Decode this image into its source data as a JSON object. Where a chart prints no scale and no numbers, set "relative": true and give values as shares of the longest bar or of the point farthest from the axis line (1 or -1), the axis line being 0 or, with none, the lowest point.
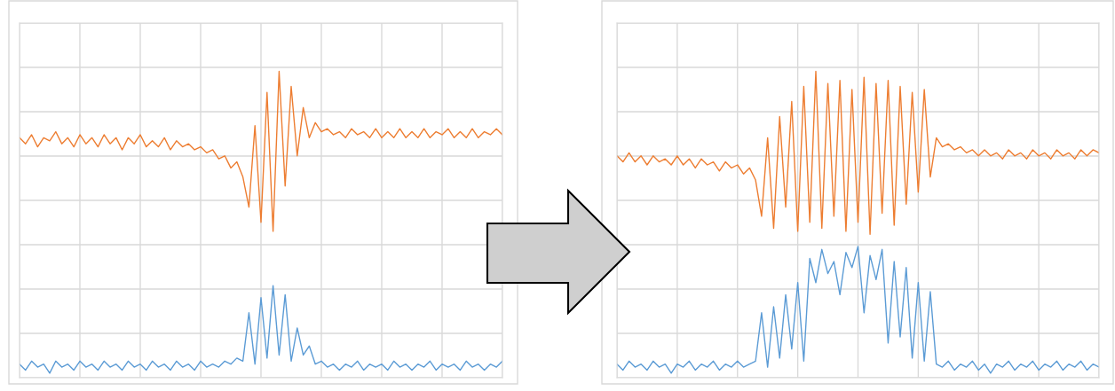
{
  "chart_data": [
    {
      "type": "line",
      "relative": true,
      "grid": true,
      "tick_labels": false,
      "categories": [
        null,
        null,
        null,
        null,
        null,
        null,
        null,
        null,
        null,
        null,
        null,
        null,
        null,
        null,
        null,
        null,
        null,
        null,
        null,
        null,
        null,
        null,
        null,
        null,
        null,
        null,
        null,
        null,
        null,
        null,
        null,
        null,
        null,
        null,
        null,
        null,
        null,
        null,
        null,
        null,
        null,
        null,
        null,
        null,
        null,
        null,
        null,
        null,
        null,
        null,
        null,
        null,
        null,
        null,
        null,
        null,
        null,
        null,
        null,
        null,
        null,
        null,
        null,
        null,
        null,
        null,
        null,
        null,
        null,
        null,
        null,
        null,
        null,
        null,
        null,
        null,
        null,
        null,
        null,
        null,
        null
      ],
      "series": [
        {
          "color": "#ed7d31",
          "values": [
            0.78,
            0.76,
            0.79,
            0.75,
            0.78,
            0.77,
            0.8,
            0.76,
            0.78,
            0.75,
            0.79,
            0.76,
            0.78,
            0.75,
            0.79,
            0.76,
            0.78,
            0.74,
            0.78,
            0.76,
            0.79,
            0.75,
            0.77,
            0.75,
            0.78,
            0.74,
            0.77,
            0.75,
            0.76,
            0.74,
            0.75,
            0.73,
            0.74,
            0.71,
            0.72,
            0.68,
            0.7,
            0.65,
            0.55,
            0.82,
            0.5,
            0.93,
            0.47,
            1.0,
            0.62,
            0.95,
            0.72,
            0.88,
            0.78,
            0.83,
            0.8,
            0.81,
            0.79,
            0.8,
            0.78,
            0.81,
            0.79,
            0.8,
            0.78,
            0.81,
            0.78,
            0.8,
            0.78,
            0.81,
            0.78,
            0.8,
            0.78,
            0.81,
            0.78,
            0.8,
            0.79,
            0.81,
            0.78,
            0.8,
            0.78,
            0.81,
            0.78,
            0.8,
            0.79,
            0.81,
            0.79
          ]
        },
        {
          "color": "#5b9bd5",
          "values": [
            0.03,
            0.01,
            0.04,
            0.02,
            0.03,
            0.0,
            0.04,
            0.02,
            0.03,
            0.01,
            0.04,
            0.02,
            0.03,
            0.01,
            0.04,
            0.02,
            0.03,
            0.01,
            0.04,
            0.02,
            0.03,
            0.01,
            0.04,
            0.02,
            0.03,
            0.01,
            0.04,
            0.02,
            0.03,
            0.01,
            0.04,
            0.02,
            0.03,
            0.02,
            0.04,
            0.03,
            0.05,
            0.04,
            0.2,
            0.03,
            0.25,
            0.05,
            0.29,
            0.06,
            0.26,
            0.04,
            0.15,
            0.06,
            0.09,
            0.03,
            0.04,
            0.02,
            0.03,
            0.01,
            0.03,
            0.02,
            0.04,
            0.01,
            0.03,
            0.02,
            0.03,
            0.01,
            0.04,
            0.02,
            0.03,
            0.01,
            0.03,
            0.02,
            0.04,
            0.01,
            0.03,
            0.02,
            0.03,
            0.01,
            0.04,
            0.02,
            0.03,
            0.01,
            0.03,
            0.02,
            0.04
          ]
        }
      ]
    },
    {
      "type": "line",
      "relative": true,
      "grid": true,
      "tick_labels": false,
      "categories": [
        null,
        null,
        null,
        null,
        null,
        null,
        null,
        null,
        null,
        null,
        null,
        null,
        null,
        null,
        null,
        null,
        null,
        null,
        null,
        null,
        null,
        null,
        null,
        null,
        null,
        null,
        null,
        null,
        null,
        null,
        null,
        null,
        null,
        null,
        null,
        null,
        null,
        null,
        null,
        null,
        null,
        null,
        null,
        null,
        null,
        null,
        null,
        null,
        null,
        null,
        null,
        null,
        null,
        null,
        null,
        null,
        null,
        null,
        null,
        null,
        null,
        null,
        null,
        null,
        null,
        null,
        null,
        null,
        null,
        null,
        null,
        null,
        null,
        null,
        null,
        null,
        null,
        null,
        null,
        null,
        null
      ],
      "series": [
        {
          "color": "#ed7d31",
          "values": [
            0.72,
            0.7,
            0.73,
            0.7,
            0.72,
            0.69,
            0.72,
            0.7,
            0.71,
            0.69,
            0.72,
            0.69,
            0.71,
            0.68,
            0.71,
            0.69,
            0.7,
            0.67,
            0.7,
            0.68,
            0.69,
            0.66,
            0.68,
            0.64,
            0.52,
            0.78,
            0.48,
            0.85,
            0.55,
            0.9,
            0.47,
            0.95,
            0.5,
            1.0,
            0.48,
            0.96,
            0.52,
            0.97,
            0.47,
            0.94,
            0.5,
            0.98,
            0.46,
            0.96,
            0.53,
            0.97,
            0.49,
            0.95,
            0.56,
            0.93,
            0.6,
            0.94,
            0.65,
            0.78,
            0.75,
            0.76,
            0.74,
            0.75,
            0.73,
            0.74,
            0.72,
            0.74,
            0.72,
            0.73,
            0.71,
            0.74,
            0.72,
            0.73,
            0.71,
            0.74,
            0.72,
            0.73,
            0.71,
            0.74,
            0.72,
            0.73,
            0.71,
            0.74,
            0.72,
            0.74,
            0.73
          ]
        },
        {
          "color": "#5b9bd5",
          "values": [
            0.03,
            0.01,
            0.04,
            0.02,
            0.03,
            0.01,
            0.04,
            0.02,
            0.03,
            0.0,
            0.03,
            0.02,
            0.04,
            0.01,
            0.03,
            0.02,
            0.04,
            0.01,
            0.03,
            0.02,
            0.04,
            0.02,
            0.03,
            0.04,
            0.2,
            0.02,
            0.22,
            0.05,
            0.26,
            0.08,
            0.3,
            0.04,
            0.38,
            0.3,
            0.41,
            0.33,
            0.37,
            0.26,
            0.4,
            0.35,
            0.42,
            0.2,
            0.39,
            0.31,
            0.41,
            0.1,
            0.37,
            0.12,
            0.35,
            0.05,
            0.3,
            0.04,
            0.27,
            0.03,
            0.02,
            0.04,
            0.01,
            0.03,
            0.02,
            0.04,
            0.01,
            0.03,
            0.0,
            0.03,
            0.02,
            0.04,
            0.01,
            0.03,
            0.02,
            0.04,
            0.01,
            0.03,
            0.02,
            0.04,
            0.01,
            0.03,
            0.02,
            0.04,
            0.01,
            0.03,
            0.02
          ]
        }
      ]
    }
  ]
}
